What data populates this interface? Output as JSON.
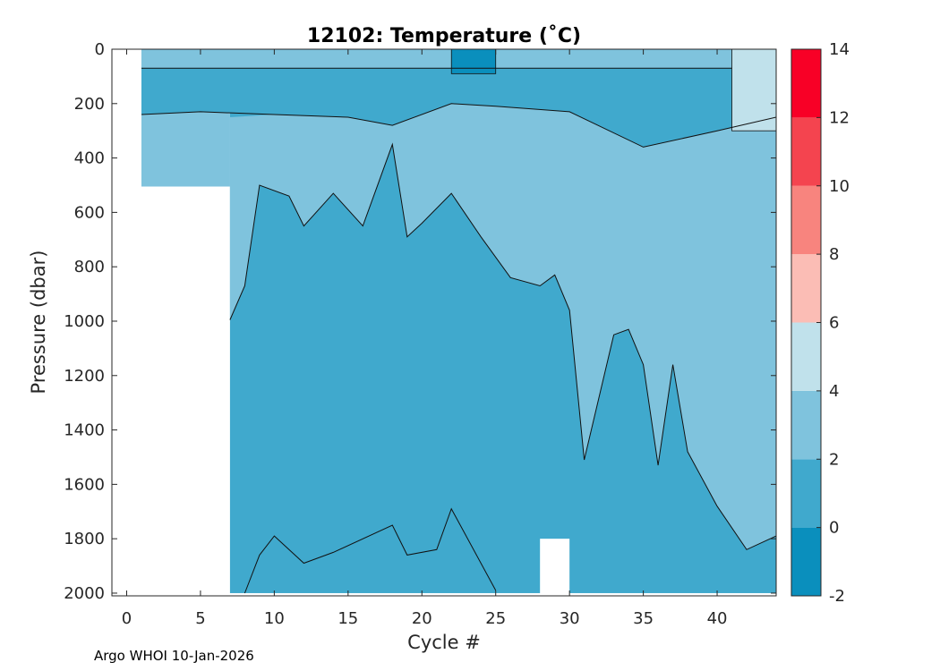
{
  "footer": "Argo WHOI 10-Jan-2026",
  "colors": {
    "band_m2_0": "#0a8fbd",
    "band_0_2": "#40a9cd",
    "band_2_4": "#7fc3dd",
    "band_4_6": "#c0e1eb",
    "band_6_8": "#fbbdb5",
    "band_8_10": "#f8847e",
    "band_10_12": "#f4444f",
    "band_12_14": "#f80026",
    "contour": "#111111"
  },
  "chart_data": {
    "type": "contourf",
    "title": "12102:  Temperature (˚C)",
    "xlabel": "Cycle #",
    "ylabel": "Pressure (dbar)",
    "xlim": [
      -1,
      44
    ],
    "ylim": [
      2010,
      0
    ],
    "y_reversed": true,
    "xticks": [
      0,
      5,
      10,
      15,
      20,
      25,
      30,
      35,
      40
    ],
    "yticks": [
      0,
      200,
      400,
      600,
      800,
      1000,
      1200,
      1400,
      1600,
      1800,
      2000
    ],
    "colorbar": {
      "levels": [
        -2,
        0,
        2,
        4,
        6,
        8,
        10,
        12,
        14
      ],
      "tick_labels": [
        "-2",
        "0",
        "2",
        "4",
        "6",
        "8",
        "10",
        "12",
        "14"
      ]
    },
    "data_extent": {
      "cycles_with_deep_profiles_start": 7,
      "shallow_profiles_cycles": [
        1,
        6
      ],
      "shallow_profile_max_pressure": 505,
      "missing_gap_cycles": [
        28,
        30
      ],
      "missing_gap_min_pressure": 1800
    },
    "isotherm_2C_depth": [
      {
        "cycle": 7,
        "pressure": 995
      },
      {
        "cycle": 8,
        "pressure": 870
      },
      {
        "cycle": 9,
        "pressure": 500
      },
      {
        "cycle": 11,
        "pressure": 540
      },
      {
        "cycle": 12,
        "pressure": 650
      },
      {
        "cycle": 14,
        "pressure": 530
      },
      {
        "cycle": 16,
        "pressure": 650
      },
      {
        "cycle": 18,
        "pressure": 350
      },
      {
        "cycle": 19,
        "pressure": 690
      },
      {
        "cycle": 20,
        "pressure": 640
      },
      {
        "cycle": 22,
        "pressure": 530
      },
      {
        "cycle": 24,
        "pressure": 690
      },
      {
        "cycle": 26,
        "pressure": 840
      },
      {
        "cycle": 28,
        "pressure": 870
      },
      {
        "cycle": 29,
        "pressure": 830
      },
      {
        "cycle": 30,
        "pressure": 960
      },
      {
        "cycle": 31,
        "pressure": 1510
      },
      {
        "cycle": 33,
        "pressure": 1050
      },
      {
        "cycle": 34,
        "pressure": 1030
      },
      {
        "cycle": 35,
        "pressure": 1160
      },
      {
        "cycle": 36,
        "pressure": 1530
      },
      {
        "cycle": 37,
        "pressure": 1160
      },
      {
        "cycle": 38,
        "pressure": 1480
      },
      {
        "cycle": 40,
        "pressure": 1680
      },
      {
        "cycle": 42,
        "pressure": 1840
      },
      {
        "cycle": 44,
        "pressure": 1790
      }
    ],
    "deep_2C_bulge": [
      {
        "cycle": 8,
        "pressure": 2000
      },
      {
        "cycle": 9,
        "pressure": 1860
      },
      {
        "cycle": 10,
        "pressure": 1790
      },
      {
        "cycle": 12,
        "pressure": 1890
      },
      {
        "cycle": 14,
        "pressure": 1850
      },
      {
        "cycle": 18,
        "pressure": 1750
      },
      {
        "cycle": 19,
        "pressure": 1860
      },
      {
        "cycle": 21,
        "pressure": 1840
      },
      {
        "cycle": 22,
        "pressure": 1690
      },
      {
        "cycle": 25,
        "pressure": 1990
      }
    ],
    "upper_boundary_2_4_layer": [
      {
        "cycle": 1,
        "pressure": 240
      },
      {
        "cycle": 5,
        "pressure": 230
      },
      {
        "cycle": 10,
        "pressure": 240
      },
      {
        "cycle": 15,
        "pressure": 250
      },
      {
        "cycle": 18,
        "pressure": 280
      },
      {
        "cycle": 22,
        "pressure": 200
      },
      {
        "cycle": 25,
        "pressure": 210
      },
      {
        "cycle": 30,
        "pressure": 230
      },
      {
        "cycle": 35,
        "pressure": 360
      },
      {
        "cycle": 40,
        "pressure": 300
      },
      {
        "cycle": 44,
        "pressure": 250
      }
    ],
    "cold_patch_minus2_0": {
      "cycles": [
        22,
        25
      ],
      "pressure": [
        0,
        90
      ]
    },
    "warm_patch_4_6": {
      "cycles": [
        41,
        44
      ],
      "pressure": [
        0,
        300
      ]
    },
    "near_surface_warm_band_2_4": {
      "cycles": [
        1,
        41
      ],
      "pressure": [
        0,
        70
      ]
    }
  }
}
